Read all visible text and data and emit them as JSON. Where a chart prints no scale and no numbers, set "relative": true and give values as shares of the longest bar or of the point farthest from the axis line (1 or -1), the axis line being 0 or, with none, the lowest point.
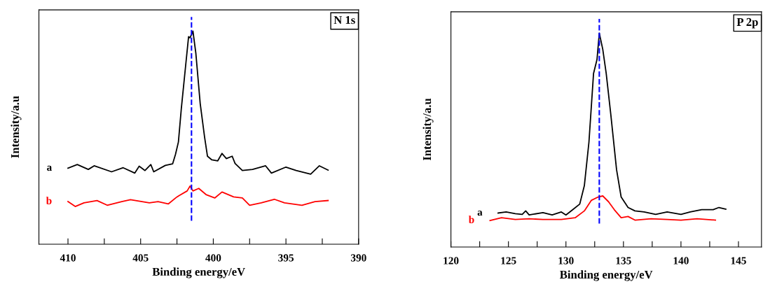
{
  "chart_data": [
    {
      "type": "line",
      "relative": true,
      "xlabel": "Binding energy/eV",
      "ylabel": "Intensity/a.u",
      "annotations": [
        "N 1s"
      ],
      "xlim": [
        412,
        390
      ],
      "xticks": [
        410,
        {
          "value": 407.5,
          "label": null
        },
        405,
        {
          "value": 402.5,
          "label": null
        },
        400,
        {
          "value": 397.5,
          "label": null
        },
        395,
        {
          "value": 392.5,
          "label": null
        },
        390
      ],
      "ref_lines": [
        {
          "axis": "x",
          "value": 401.5,
          "color": "#0000ff",
          "line_style": "dashed"
        }
      ],
      "grid": false,
      "legend": false,
      "marker": "none",
      "line_style": "solid",
      "series": [
        {
          "name": "a",
          "color": "#000000",
          "x": [
            410,
            409.36,
            408.6,
            408.2,
            407.0,
            406.2,
            405.4,
            405.1,
            404.7,
            404.3,
            404.1,
            403.3,
            402.8,
            402.6,
            402.4,
            402.2,
            401.9,
            401.7,
            401.6,
            401.4,
            401.2,
            400.9,
            400.6,
            400.4,
            400.1,
            399.7,
            399.4,
            399.1,
            398.7,
            398.5,
            398.0,
            397.3,
            396.4,
            396.0,
            395.0,
            394.3,
            393.3,
            392.7,
            392.1
          ],
          "values": [
            0.357,
            0.374,
            0.351,
            0.368,
            0.34,
            0.359,
            0.334,
            0.366,
            0.346,
            0.374,
            0.34,
            0.37,
            0.377,
            0.422,
            0.48,
            0.637,
            0.84,
            0.974,
            0.969,
            1.0,
            0.896,
            0.66,
            0.503,
            0.413,
            0.396,
            0.391,
            0.426,
            0.402,
            0.413,
            0.379,
            0.346,
            0.351,
            0.368,
            0.334,
            0.362,
            0.346,
            0.329,
            0.368,
            0.348
          ]
        },
        {
          "name": "b",
          "color": "#ff0000",
          "x": [
            410,
            409.5,
            408.9,
            408.0,
            407.3,
            406.3,
            405.7,
            404.4,
            403.8,
            403.1,
            402.5,
            401.8,
            401.6,
            401.4,
            401.0,
            400.5,
            399.9,
            399.4,
            398.6,
            398.0,
            397.5,
            396.7,
            395.8,
            395.1,
            393.9,
            393.0,
            392.1
          ],
          "values": [
            0.2,
            0.177,
            0.194,
            0.205,
            0.183,
            0.2,
            0.209,
            0.194,
            0.2,
            0.189,
            0.222,
            0.25,
            0.273,
            0.25,
            0.262,
            0.233,
            0.217,
            0.245,
            0.222,
            0.217,
            0.183,
            0.194,
            0.211,
            0.194,
            0.183,
            0.2,
            0.205
          ]
        }
      ]
    },
    {
      "type": "line",
      "relative": true,
      "xlabel": "Binding energy/eV",
      "ylabel": "Intensity/a.u",
      "annotations": [
        "P 2p"
      ],
      "xlim": [
        120,
        147
      ],
      "xticks": [
        120,
        {
          "value": 122.5,
          "label": null
        },
        125,
        {
          "value": 127.5,
          "label": null
        },
        130,
        {
          "value": 132.5,
          "label": null
        },
        135,
        {
          "value": 137.5,
          "label": null
        },
        140,
        {
          "value": 142.5,
          "label": null
        },
        145
      ],
      "ref_lines": [
        {
          "axis": "x",
          "value": 132.9,
          "color": "#0000ff",
          "line_style": "dashed"
        }
      ],
      "grid": false,
      "legend": false,
      "marker": "none",
      "line_style": "solid",
      "series": [
        {
          "name": "a",
          "color": "#000000",
          "x": [
            124.1,
            124.8,
            125.6,
            126.2,
            126.5,
            126.8,
            128.0,
            128.8,
            129.6,
            130.0,
            130.6,
            131.2,
            131.6,
            132.0,
            132.4,
            132.7,
            132.9,
            133.2,
            133.5,
            133.9,
            134.4,
            134.8,
            135.4,
            136.0,
            136.8,
            137.8,
            138.8,
            140.0,
            140.8,
            141.8,
            142.8,
            143.3,
            143.9
          ],
          "values": [
            0.159,
            0.164,
            0.156,
            0.153,
            0.169,
            0.15,
            0.161,
            0.15,
            0.164,
            0.15,
            0.175,
            0.201,
            0.287,
            0.491,
            0.812,
            0.877,
            1.0,
            0.925,
            0.812,
            0.62,
            0.362,
            0.234,
            0.185,
            0.169,
            0.164,
            0.153,
            0.164,
            0.153,
            0.164,
            0.175,
            0.175,
            0.185,
            0.177
          ]
        },
        {
          "name": "b",
          "color": "#ff0000",
          "x": [
            123.4,
            124.4,
            125.6,
            126.8,
            128.0,
            129.6,
            130.8,
            131.6,
            132.2,
            132.8,
            133.2,
            133.7,
            134.2,
            134.8,
            135.4,
            136.0,
            137.4,
            138.8,
            140.0,
            141.4,
            143.0
          ],
          "values": [
            0.124,
            0.137,
            0.129,
            0.132,
            0.129,
            0.129,
            0.137,
            0.169,
            0.218,
            0.234,
            0.239,
            0.212,
            0.175,
            0.137,
            0.143,
            0.126,
            0.132,
            0.129,
            0.126,
            0.132,
            0.126
          ]
        }
      ]
    }
  ]
}
